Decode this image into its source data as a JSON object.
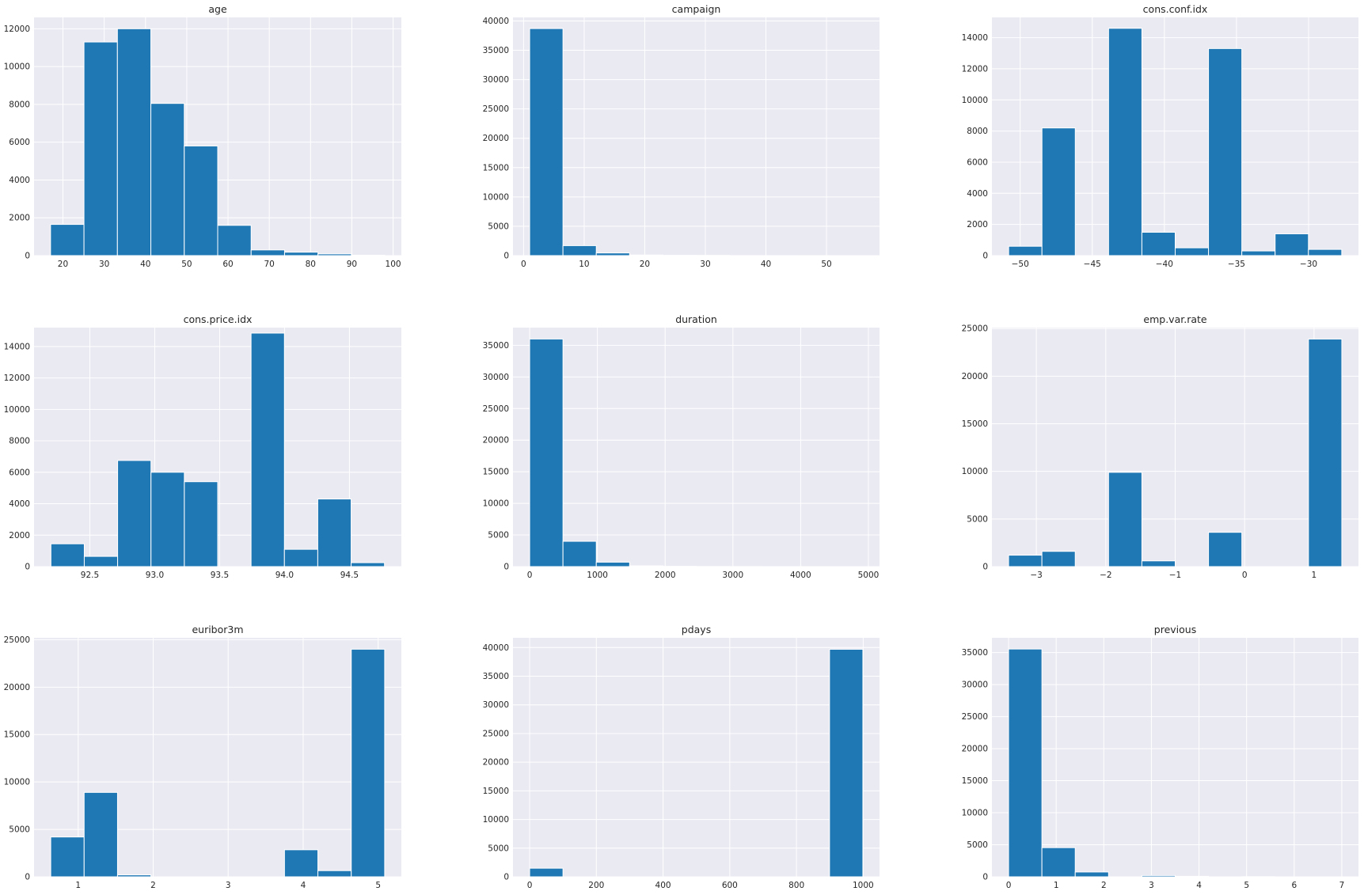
{
  "chart_data": [
    {
      "type": "bar",
      "title": "age",
      "bins": [
        [
          17,
          25.1
        ],
        [
          25.1,
          33.2
        ],
        [
          33.2,
          41.3
        ],
        [
          41.3,
          49.4
        ],
        [
          49.4,
          57.5
        ],
        [
          57.5,
          65.6
        ],
        [
          65.6,
          73.7
        ],
        [
          73.7,
          81.8
        ],
        [
          81.8,
          89.9
        ],
        [
          89.9,
          98
        ]
      ],
      "values": [
        1650,
        11300,
        12000,
        8050,
        5800,
        1600,
        300,
        180,
        90,
        20
      ],
      "xlim": [
        13,
        102
      ],
      "ylim": [
        0,
        12600
      ],
      "xticks": [
        20,
        30,
        40,
        50,
        60,
        70,
        80,
        90,
        100
      ],
      "xtick_labels": [
        "20",
        "30",
        "40",
        "50",
        "60",
        "70",
        "80",
        "90",
        "100"
      ],
      "yticks": [
        0,
        2000,
        4000,
        6000,
        8000,
        10000,
        12000
      ],
      "ytick_labels": [
        "0",
        "2000",
        "4000",
        "6000",
        "8000",
        "10000",
        "12000"
      ],
      "grid": true
    },
    {
      "type": "bar",
      "title": "campaign",
      "bins": [
        [
          1,
          6.5
        ],
        [
          6.5,
          12
        ],
        [
          12,
          17.5
        ],
        [
          17.5,
          23
        ],
        [
          23,
          28.5
        ],
        [
          28.5,
          34
        ],
        [
          34,
          39.5
        ],
        [
          39.5,
          45
        ],
        [
          45,
          50.5
        ],
        [
          50.5,
          56
        ]
      ],
      "values": [
        38700,
        1700,
        450,
        100,
        50,
        40,
        10,
        5,
        3,
        2
      ],
      "xlim": [
        -1.75,
        58.75
      ],
      "ylim": [
        0,
        40600
      ],
      "xticks": [
        0,
        10,
        20,
        30,
        40,
        50
      ],
      "xtick_labels": [
        "0",
        "10",
        "20",
        "30",
        "40",
        "50"
      ],
      "yticks": [
        0,
        5000,
        10000,
        15000,
        20000,
        25000,
        30000,
        35000,
        40000
      ],
      "ytick_labels": [
        "0",
        "5000",
        "10000",
        "15000",
        "20000",
        "25000",
        "30000",
        "35000",
        "40000"
      ],
      "grid": true
    },
    {
      "type": "bar",
      "title": "cons.conf.idx",
      "bins": [
        [
          -50.8,
          -48.49
        ],
        [
          -48.49,
          -46.18
        ],
        [
          -46.18,
          -43.87
        ],
        [
          -43.87,
          -41.56
        ],
        [
          -41.56,
          -39.25
        ],
        [
          -39.25,
          -36.94
        ],
        [
          -36.94,
          -34.63
        ],
        [
          -34.63,
          -32.32
        ],
        [
          -32.32,
          -30.01
        ],
        [
          -30.01,
          -27.7
        ]
      ],
      "values": [
        600,
        8200,
        0,
        14600,
        1500,
        500,
        13300,
        300,
        1400,
        400
      ],
      "xlim": [
        -51.96,
        -26.54
      ],
      "ylim": [
        0,
        15300
      ],
      "xticks": [
        -50,
        -45,
        -40,
        -35,
        -30
      ],
      "xtick_labels": [
        "−50",
        "−45",
        "−40",
        "−35",
        "−30"
      ],
      "yticks": [
        0,
        2000,
        4000,
        6000,
        8000,
        10000,
        12000,
        14000
      ],
      "ytick_labels": [
        "0",
        "2000",
        "4000",
        "6000",
        "8000",
        "10000",
        "12000",
        "14000"
      ],
      "grid": true
    },
    {
      "type": "bar",
      "title": "cons.price.idx",
      "bins": [
        [
          92.2,
          92.457
        ],
        [
          92.457,
          92.714
        ],
        [
          92.714,
          92.971
        ],
        [
          92.971,
          93.228
        ],
        [
          93.228,
          93.485
        ],
        [
          93.485,
          93.742
        ],
        [
          93.742,
          93.999
        ],
        [
          93.999,
          94.256
        ],
        [
          94.256,
          94.513
        ],
        [
          94.513,
          94.77
        ]
      ],
      "values": [
        1450,
        650,
        6750,
        6000,
        5400,
        0,
        14850,
        1100,
        4300,
        250
      ],
      "xlim": [
        92.07,
        94.9
      ],
      "ylim": [
        0,
        15200
      ],
      "xticks": [
        92.5,
        93.0,
        93.5,
        94.0,
        94.5
      ],
      "xtick_labels": [
        "92.5",
        "93.0",
        "93.5",
        "94.0",
        "94.5"
      ],
      "yticks": [
        0,
        2000,
        4000,
        6000,
        8000,
        10000,
        12000,
        14000
      ],
      "ytick_labels": [
        "0",
        "2000",
        "4000",
        "6000",
        "8000",
        "10000",
        "12000",
        "14000"
      ],
      "grid": true
    },
    {
      "type": "bar",
      "title": "duration",
      "bins": [
        [
          0,
          491.8
        ],
        [
          491.8,
          983.6
        ],
        [
          983.6,
          1475.4
        ],
        [
          1475.4,
          1967.2
        ],
        [
          1967.2,
          2459
        ],
        [
          2459,
          2950.8
        ],
        [
          2950.8,
          3442.6
        ],
        [
          3442.6,
          3934.4
        ],
        [
          3934.4,
          4426.2
        ],
        [
          4426.2,
          4918
        ]
      ],
      "values": [
        36000,
        4000,
        700,
        120,
        40,
        15,
        8,
        5,
        3,
        2
      ],
      "xlim": [
        -246,
        5164
      ],
      "ylim": [
        0,
        37800
      ],
      "xticks": [
        0,
        1000,
        2000,
        3000,
        4000,
        5000
      ],
      "xtick_labels": [
        "0",
        "1000",
        "2000",
        "3000",
        "4000",
        "5000"
      ],
      "yticks": [
        0,
        5000,
        10000,
        15000,
        20000,
        25000,
        30000,
        35000
      ],
      "ytick_labels": [
        "0",
        "5000",
        "10000",
        "15000",
        "20000",
        "25000",
        "30000",
        "35000"
      ],
      "grid": true
    },
    {
      "type": "bar",
      "title": "emp.var.rate",
      "bins": [
        [
          -3.4,
          -2.92
        ],
        [
          -2.92,
          -2.44
        ],
        [
          -2.44,
          -1.96
        ],
        [
          -1.96,
          -1.48
        ],
        [
          -1.48,
          -1.0
        ],
        [
          -1.0,
          -0.52
        ],
        [
          -0.52,
          -0.04
        ],
        [
          -0.04,
          0.44
        ],
        [
          0.44,
          0.92
        ],
        [
          0.92,
          1.4
        ]
      ],
      "values": [
        1200,
        1600,
        0,
        9900,
        600,
        0,
        3600,
        0,
        0,
        23900
      ],
      "xlim": [
        -3.64,
        1.64
      ],
      "ylim": [
        0,
        25100
      ],
      "xticks": [
        -3,
        -2,
        -1,
        0,
        1
      ],
      "xtick_labels": [
        "−3",
        "−2",
        "−1",
        "0",
        "1"
      ],
      "yticks": [
        0,
        5000,
        10000,
        15000,
        20000,
        25000
      ],
      "ytick_labels": [
        "0",
        "5000",
        "10000",
        "15000",
        "20000",
        "25000"
      ],
      "grid": true
    },
    {
      "type": "bar",
      "title": "euribor3m",
      "bins": [
        [
          0.634,
          1.0793
        ],
        [
          1.0793,
          1.5246
        ],
        [
          1.5246,
          1.9699
        ],
        [
          1.9699,
          2.4152
        ],
        [
          2.4152,
          2.8605
        ],
        [
          2.8605,
          3.3058
        ],
        [
          3.3058,
          3.7511
        ],
        [
          3.7511,
          4.1964
        ],
        [
          4.1964,
          4.6417
        ],
        [
          4.6417,
          5.087
        ]
      ],
      "values": [
        4200,
        8900,
        200,
        0,
        0,
        0,
        0,
        2850,
        650,
        24000
      ],
      "xlim": [
        0.4114,
        5.3096
      ],
      "ylim": [
        0,
        25200
      ],
      "xticks": [
        1,
        2,
        3,
        4,
        5
      ],
      "xtick_labels": [
        "1",
        "2",
        "3",
        "4",
        "5"
      ],
      "yticks": [
        0,
        5000,
        10000,
        15000,
        20000,
        25000
      ],
      "ytick_labels": [
        "0",
        "5000",
        "10000",
        "15000",
        "20000",
        "25000"
      ],
      "grid": true
    },
    {
      "type": "bar",
      "title": "pdays",
      "bins": [
        [
          0,
          99.9
        ],
        [
          99.9,
          199.8
        ],
        [
          199.8,
          299.7
        ],
        [
          299.7,
          399.6
        ],
        [
          399.6,
          499.5
        ],
        [
          499.5,
          599.4
        ],
        [
          599.4,
          699.3
        ],
        [
          699.3,
          799.2
        ],
        [
          799.2,
          899.1
        ],
        [
          899.1,
          999
        ]
      ],
      "values": [
        1500,
        0,
        0,
        0,
        0,
        0,
        0,
        0,
        0,
        39700
      ],
      "xlim": [
        -49.95,
        1048.95
      ],
      "ylim": [
        0,
        41700
      ],
      "xticks": [
        0,
        200,
        400,
        600,
        800,
        1000
      ],
      "xtick_labels": [
        "0",
        "200",
        "400",
        "600",
        "800",
        "1000"
      ],
      "yticks": [
        0,
        5000,
        10000,
        15000,
        20000,
        25000,
        30000,
        35000,
        40000
      ],
      "ytick_labels": [
        "0",
        "5000",
        "10000",
        "15000",
        "20000",
        "25000",
        "30000",
        "35000",
        "40000"
      ],
      "grid": true
    },
    {
      "type": "bar",
      "title": "previous",
      "bins": [
        [
          0,
          0.7
        ],
        [
          0.7,
          1.4
        ],
        [
          1.4,
          2.1
        ],
        [
          2.1,
          2.8
        ],
        [
          2.8,
          3.5
        ],
        [
          3.5,
          4.2
        ],
        [
          4.2,
          4.9
        ],
        [
          4.9,
          5.6
        ],
        [
          5.6,
          6.3
        ],
        [
          6.3,
          7.0
        ]
      ],
      "values": [
        35550,
        4550,
        750,
        0,
        200,
        70,
        0,
        18,
        0,
        1
      ],
      "xlim": [
        -0.35,
        7.35
      ],
      "ylim": [
        0,
        37300
      ],
      "xticks": [
        0,
        1,
        2,
        3,
        4,
        5,
        6,
        7
      ],
      "xtick_labels": [
        "0",
        "1",
        "2",
        "3",
        "4",
        "5",
        "6",
        "7"
      ],
      "yticks": [
        0,
        5000,
        10000,
        15000,
        20000,
        25000,
        30000,
        35000
      ],
      "ytick_labels": [
        "0",
        "5000",
        "10000",
        "15000",
        "20000",
        "25000",
        "30000",
        "35000"
      ],
      "grid": true
    }
  ]
}
